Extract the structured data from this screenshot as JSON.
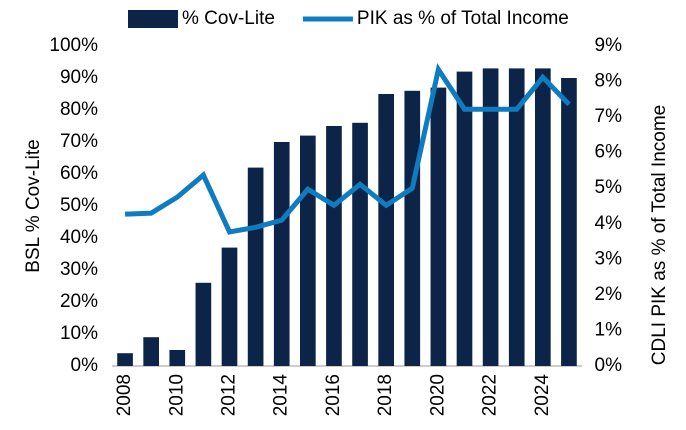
{
  "chart_data": {
    "type": "bar_line",
    "categories": [
      "2008",
      null,
      "2010",
      null,
      "2012",
      null,
      "2014",
      null,
      "2016",
      null,
      "2018",
      null,
      "2020",
      null,
      "2022",
      null,
      "2024",
      null
    ],
    "series": [
      {
        "name": "% Cov-Lite",
        "type": "bar",
        "color": "#0c2447",
        "values": [
          4,
          9,
          5,
          26,
          37,
          62,
          70,
          72,
          75,
          76,
          85,
          86,
          87,
          92,
          93,
          93,
          93,
          90
        ]
      },
      {
        "name": "PIK as % of Total Income",
        "type": "line",
        "axis": "y2",
        "color": "#0f7bc1",
        "values": [
          4.27,
          4.3,
          4.75,
          5.37,
          3.77,
          3.9,
          4.1,
          4.97,
          4.52,
          5.11,
          4.52,
          5.0,
          8.34,
          7.22,
          7.22,
          7.22,
          8.12,
          7.36
        ]
      }
    ],
    "ylabel": "BSL % Cov-Lite",
    "y2label": "CDLI PIK as % of Total Income",
    "ylim": [
      0,
      100
    ],
    "yticks": [
      {
        "value": 0,
        "label": "0%"
      },
      {
        "value": 10,
        "label": "10%"
      },
      {
        "value": 20,
        "label": "20%"
      },
      {
        "value": 30,
        "label": "30%"
      },
      {
        "value": 40,
        "label": "40%"
      },
      {
        "value": 50,
        "label": "50%"
      },
      {
        "value": 60,
        "label": "60%"
      },
      {
        "value": 70,
        "label": "70%"
      },
      {
        "value": 80,
        "label": "80%"
      },
      {
        "value": 90,
        "label": "90%"
      },
      {
        "value": 100,
        "label": "100%"
      }
    ],
    "y2lim": [
      0,
      9
    ],
    "y2ticks": [
      {
        "value": 0,
        "label": "0%"
      },
      {
        "value": 1,
        "label": "1%"
      },
      {
        "value": 2,
        "label": "2%"
      },
      {
        "value": 3,
        "label": "3%"
      },
      {
        "value": 4,
        "label": "4%"
      },
      {
        "value": 5,
        "label": "5%"
      },
      {
        "value": 6,
        "label": "6%"
      },
      {
        "value": 7,
        "label": "7%"
      },
      {
        "value": 8,
        "label": "8%"
      },
      {
        "value": 9,
        "label": "9%"
      }
    ],
    "legend": "top"
  }
}
